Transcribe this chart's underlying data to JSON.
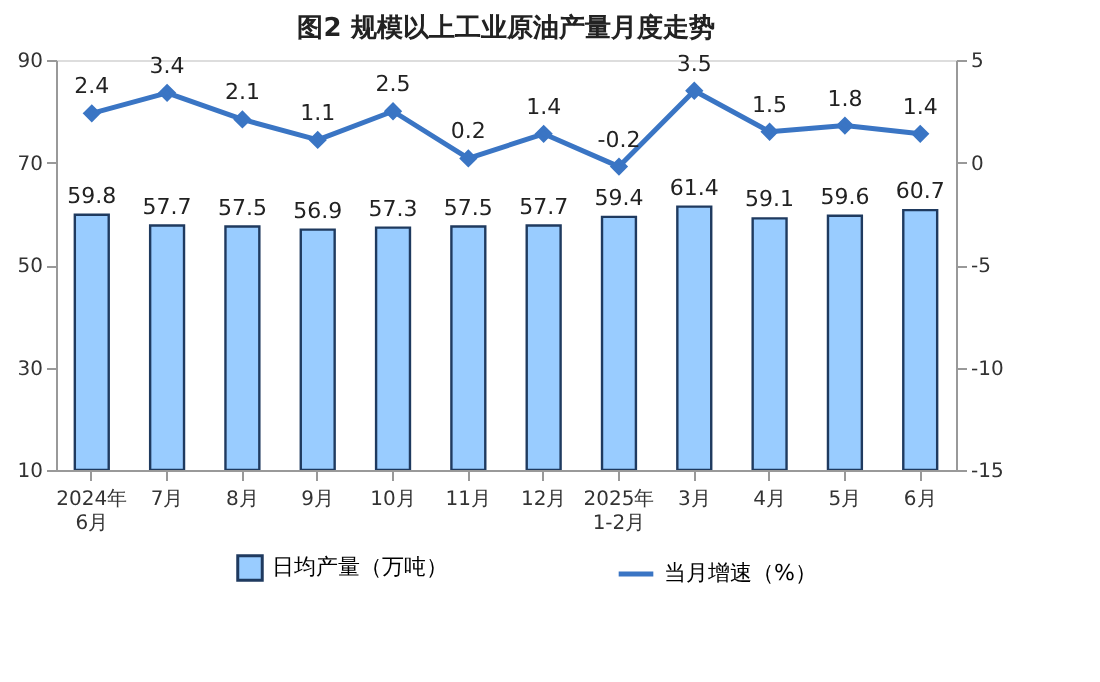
{
  "chart_data": {
    "type": "bar",
    "title": "图2  规模以上工业原油产量月度走势",
    "categories": [
      "2024年\n6月",
      "7月",
      "8月",
      "9月",
      "10月",
      "11月",
      "12月",
      "2025年\n1-2月",
      "3月",
      "4月",
      "5月",
      "6月"
    ],
    "series": [
      {
        "name": "日均产量（万吨）",
        "color": "#99ccff",
        "values": [
          59.8,
          57.7,
          57.5,
          56.9,
          57.3,
          57.5,
          57.7,
          59.4,
          61.4,
          59.1,
          59.6,
          60.7
        ]
      },
      {
        "name": "当月增速（%）",
        "type": "line",
        "axis": "y2",
        "color": "#3a75c4",
        "marker": "diamond",
        "values": [
          2.4,
          3.4,
          2.1,
          1.1,
          2.5,
          0.2,
          1.4,
          -0.2,
          3.5,
          1.5,
          1.8,
          1.4
        ]
      }
    ],
    "ylim": [
      10,
      90
    ],
    "yticks": [
      10,
      30,
      50,
      70,
      90
    ],
    "y2lim": [
      -15,
      5
    ],
    "y2ticks": [
      -15,
      -10,
      -5,
      0,
      5
    ],
    "data_labels": true,
    "grid": false,
    "legend": "bottom"
  }
}
